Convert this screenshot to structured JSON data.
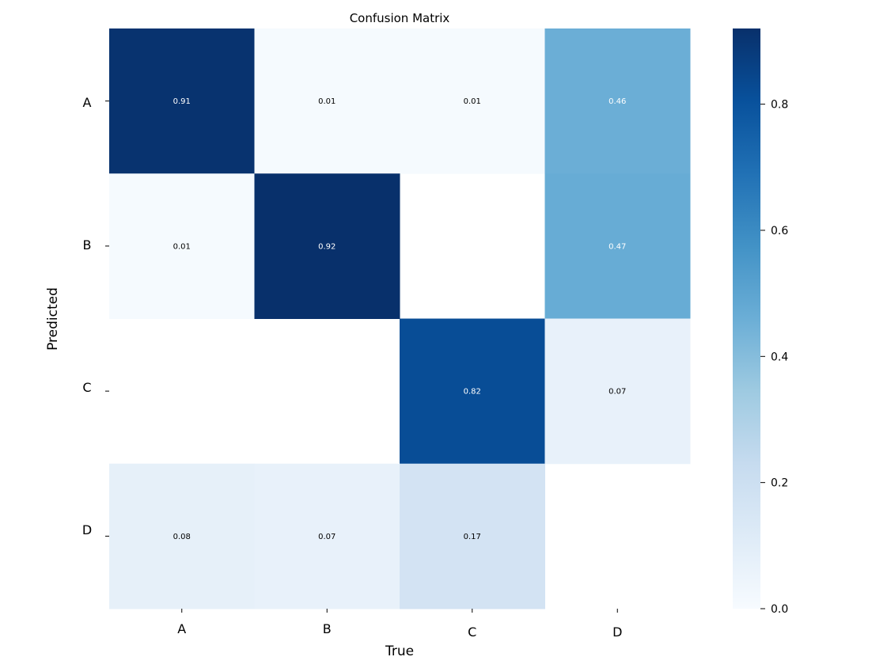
{
  "chart_data": {
    "type": "heatmap",
    "title": "Confusion Matrix",
    "xlabel": "True",
    "ylabel": "Predicted",
    "x_categories": [
      "A",
      "B",
      "C",
      "D"
    ],
    "y_categories": [
      "A",
      "B",
      "C",
      "D"
    ],
    "values": [
      [
        0.91,
        0.01,
        0.01,
        0.46
      ],
      [
        0.01,
        0.92,
        null,
        0.47
      ],
      [
        null,
        null,
        0.82,
        0.07
      ],
      [
        0.08,
        0.07,
        0.17,
        null
      ]
    ],
    "value_labels": [
      [
        "0.91",
        "0.01",
        "0.01",
        "0.46"
      ],
      [
        "0.01",
        "0.92",
        "",
        "0.47"
      ],
      [
        "",
        "",
        "0.82",
        "0.07"
      ],
      [
        "0.08",
        "0.07",
        "0.17",
        ""
      ]
    ],
    "colormap": "Blues",
    "color_range": [
      0,
      0.92
    ],
    "colorbar_ticks": [
      "0.0",
      "0.2",
      "0.4",
      "0.6",
      "0.8"
    ],
    "colorbar_tick_values": [
      0,
      0.2,
      0.4,
      0.6,
      0.8
    ]
  }
}
